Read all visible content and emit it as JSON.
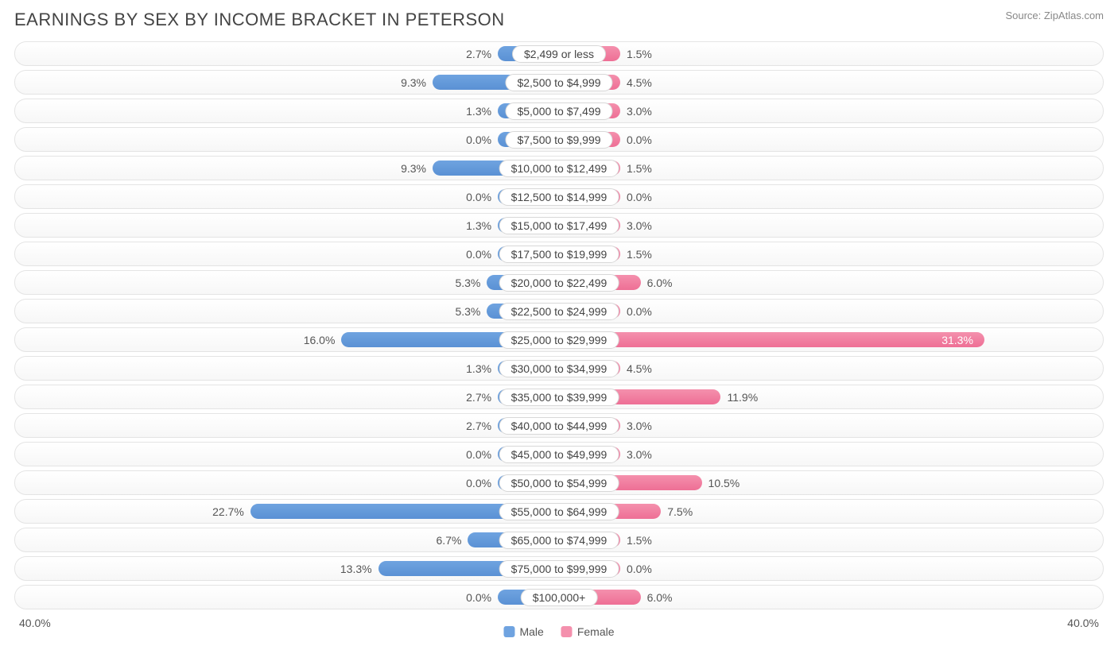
{
  "title": "EARNINGS BY SEX BY INCOME BRACKET IN PETERSON",
  "source": "Source: ZipAtlas.com",
  "chart": {
    "type": "butterfly-bar",
    "axis_max_pct": 40.0,
    "axis_left_label": "40.0%",
    "axis_right_label": "40.0%",
    "inner_bar_min_pct": 4.5,
    "colors": {
      "male_fill": "#6fa3e0",
      "male_fill_dark": "#5a91d4",
      "female_fill": "#f490ad",
      "female_fill_dark": "#ee6f95",
      "row_border": "#e4e4e4",
      "text": "#555555",
      "pill_bg": "#ffffff",
      "pill_border": "#d8d8d8"
    },
    "legend": [
      {
        "label": "Male",
        "color": "#6fa3e0"
      },
      {
        "label": "Female",
        "color": "#f490ad"
      }
    ],
    "rows": [
      {
        "category": "$2,499 or less",
        "male": 2.7,
        "female": 1.5
      },
      {
        "category": "$2,500 to $4,999",
        "male": 9.3,
        "female": 4.5
      },
      {
        "category": "$5,000 to $7,499",
        "male": 1.3,
        "female": 3.0
      },
      {
        "category": "$7,500 to $9,999",
        "male": 0.0,
        "female": 0.0
      },
      {
        "category": "$10,000 to $12,499",
        "male": 9.3,
        "female": 1.5
      },
      {
        "category": "$12,500 to $14,999",
        "male": 0.0,
        "female": 0.0
      },
      {
        "category": "$15,000 to $17,499",
        "male": 1.3,
        "female": 3.0
      },
      {
        "category": "$17,500 to $19,999",
        "male": 0.0,
        "female": 1.5
      },
      {
        "category": "$20,000 to $22,499",
        "male": 5.3,
        "female": 6.0
      },
      {
        "category": "$22,500 to $24,999",
        "male": 5.3,
        "female": 0.0
      },
      {
        "category": "$25,000 to $29,999",
        "male": 16.0,
        "female": 31.3
      },
      {
        "category": "$30,000 to $34,999",
        "male": 1.3,
        "female": 4.5
      },
      {
        "category": "$35,000 to $39,999",
        "male": 2.7,
        "female": 11.9
      },
      {
        "category": "$40,000 to $44,999",
        "male": 2.7,
        "female": 3.0
      },
      {
        "category": "$45,000 to $49,999",
        "male": 0.0,
        "female": 3.0
      },
      {
        "category": "$50,000 to $54,999",
        "male": 0.0,
        "female": 10.5
      },
      {
        "category": "$55,000 to $64,999",
        "male": 22.7,
        "female": 7.5
      },
      {
        "category": "$65,000 to $74,999",
        "male": 6.7,
        "female": 1.5
      },
      {
        "category": "$75,000 to $99,999",
        "male": 13.3,
        "female": 0.0
      },
      {
        "category": "$100,000+",
        "male": 0.0,
        "female": 6.0
      }
    ]
  }
}
